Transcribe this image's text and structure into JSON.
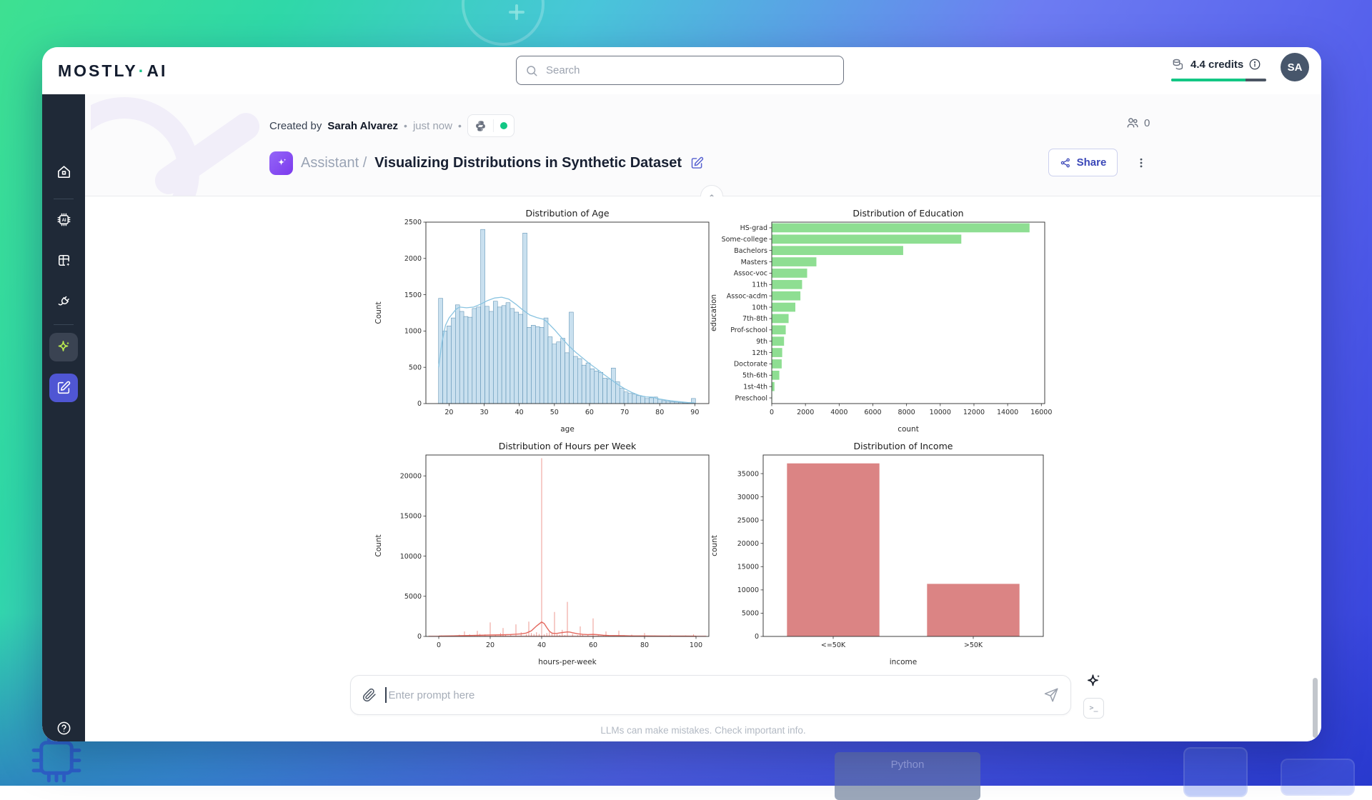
{
  "app": {
    "logo_left": "MOSTLY",
    "logo_dot": "·",
    "logo_right": "AI",
    "search_placeholder": "Search",
    "credits_label": "4.4 credits",
    "avatar_initials": "SA"
  },
  "sidebar": {
    "items": [
      "home-icon",
      "ai-chip-icon",
      "dataset-plus-icon",
      "connector-plug-icon",
      "assistant-sparkle-icon",
      "new-chat-compose-icon"
    ],
    "bottom": [
      "help-icon",
      "panel-toggle-icon"
    ]
  },
  "meta": {
    "created_by": "Created by",
    "author": "Sarah Alvarez",
    "dot": "•",
    "time": "just now"
  },
  "titlebar": {
    "breadcrumb": "Assistant",
    "separator": "/",
    "title": "Visualizing Distributions in Synthetic Dataset",
    "share_label": "Share",
    "collaborators_count": "0"
  },
  "prompt": {
    "placeholder": "Enter prompt here",
    "terminal_glyph": ">_"
  },
  "footer": {
    "disclaimer": "LLMs can make mistakes. Check important info."
  },
  "background": {
    "python_label": "Python"
  },
  "colors": {
    "accent_indigo": "#4f56d3",
    "brand_green": "#12c784",
    "sidebar_bg": "#1f2937",
    "lime_sparkle": "#b8e84e",
    "badge_purple": "#8b5cf6"
  },
  "icons": {
    "search-icon": "magnifier",
    "credits-coins-icon": "coin-stack",
    "info-icon": "circled-i",
    "users-icon": "two-people",
    "share-icon": "share-nodes",
    "kebab-icon": "vertical-dots",
    "python-icon": "python-logo",
    "chevron-up-icon": "^",
    "attachment-paperclip-icon": "paperclip",
    "send-icon": "paper-plane",
    "terminal-icon": ">_"
  },
  "chart_data": [
    {
      "id": "age",
      "type": "histogram",
      "title": "Distribution of Age",
      "xlabel": "age",
      "ylabel": "Count",
      "xlim": [
        13.4,
        94
      ],
      "ylim": [
        0,
        2500
      ],
      "xticks": [
        20,
        30,
        40,
        50,
        60,
        70,
        80,
        90
      ],
      "yticks": [
        0,
        500,
        1000,
        1500,
        2000,
        2500
      ],
      "bin_start": 17,
      "bin_width": 1.2,
      "values": [
        1450,
        1000,
        1070,
        1180,
        1360,
        1270,
        1200,
        1190,
        1310,
        1330,
        2400,
        1340,
        1270,
        1410,
        1330,
        1350,
        1390,
        1310,
        1260,
        1230,
        2350,
        1050,
        1080,
        1060,
        1050,
        1180,
        920,
        820,
        850,
        900,
        700,
        1260,
        650,
        620,
        530,
        560,
        480,
        450,
        430,
        350,
        340,
        490,
        300,
        210,
        160,
        140,
        130,
        110,
        100,
        70,
        80,
        90,
        60,
        40,
        30,
        25,
        20,
        15,
        10,
        8,
        70
      ],
      "kde": [
        [
          17,
          500
        ],
        [
          18,
          850
        ],
        [
          19,
          1080
        ],
        [
          20,
          1180
        ],
        [
          21,
          1240
        ],
        [
          22,
          1300
        ],
        [
          23,
          1330
        ],
        [
          25,
          1320
        ],
        [
          27,
          1330
        ],
        [
          29,
          1370
        ],
        [
          31,
          1420
        ],
        [
          33,
          1455
        ],
        [
          35,
          1465
        ],
        [
          37,
          1440
        ],
        [
          39,
          1370
        ],
        [
          41,
          1290
        ],
        [
          43,
          1220
        ],
        [
          45,
          1185
        ],
        [
          47,
          1160
        ],
        [
          48,
          1120
        ],
        [
          50,
          1020
        ],
        [
          52,
          910
        ],
        [
          54,
          800
        ],
        [
          56,
          710
        ],
        [
          58,
          630
        ],
        [
          60,
          550
        ],
        [
          62,
          480
        ],
        [
          64,
          405
        ],
        [
          66,
          335
        ],
        [
          68,
          265
        ],
        [
          70,
          205
        ],
        [
          72,
          155
        ],
        [
          74,
          115
        ],
        [
          76,
          92
        ],
        [
          78,
          88
        ],
        [
          80,
          62
        ],
        [
          82,
          46
        ],
        [
          84,
          34
        ],
        [
          86,
          24
        ],
        [
          88,
          14
        ],
        [
          90,
          8
        ]
      ],
      "bar_fill": "#c9e0ef",
      "bar_edge": "#4d86ab",
      "kde_color": "#8ac4e1"
    },
    {
      "id": "education",
      "type": "barh",
      "title": "Distribution of Education",
      "xlabel": "count",
      "ylabel": "education",
      "categories": [
        "HS-grad",
        "Some-college",
        "Bachelors",
        "Masters",
        "Assoc-voc",
        "11th",
        "Assoc-acdm",
        "10th",
        "7th-8th",
        "Prof-school",
        "9th",
        "12th",
        "Doctorate",
        "5th-6th",
        "1st-4th",
        "Preschool"
      ],
      "values": [
        15300,
        11250,
        7800,
        2650,
        2100,
        1800,
        1700,
        1400,
        1000,
        830,
        730,
        620,
        590,
        450,
        160,
        25
      ],
      "xlim": [
        0,
        16200
      ],
      "xticks": [
        0,
        2000,
        4000,
        6000,
        8000,
        10000,
        12000,
        14000,
        16000
      ],
      "bar_fill": "#8ede92"
    },
    {
      "id": "hours",
      "type": "spikes",
      "title": "Distribution of Hours per Week",
      "xlabel": "hours-per-week",
      "ylabel": "Count",
      "xlim": [
        -5,
        105
      ],
      "ylim": [
        0,
        22600
      ],
      "xticks": [
        0,
        20,
        40,
        60,
        80,
        100
      ],
      "yticks": [
        0,
        5000,
        10000,
        15000,
        20000
      ],
      "spikes": [
        [
          1,
          120
        ],
        [
          3,
          60
        ],
        [
          4,
          80
        ],
        [
          5,
          130
        ],
        [
          6,
          90
        ],
        [
          8,
          210
        ],
        [
          10,
          620
        ],
        [
          12,
          260
        ],
        [
          14,
          150
        ],
        [
          15,
          700
        ],
        [
          16,
          320
        ],
        [
          18,
          260
        ],
        [
          20,
          1750
        ],
        [
          22,
          200
        ],
        [
          24,
          420
        ],
        [
          25,
          1050
        ],
        [
          26,
          200
        ],
        [
          28,
          310
        ],
        [
          30,
          1500
        ],
        [
          32,
          520
        ],
        [
          34,
          260
        ],
        [
          35,
          1850
        ],
        [
          36,
          420
        ],
        [
          37,
          300
        ],
        [
          38,
          520
        ],
        [
          39,
          310
        ],
        [
          40,
          22200
        ],
        [
          41,
          260
        ],
        [
          42,
          430
        ],
        [
          43,
          520
        ],
        [
          44,
          420
        ],
        [
          45,
          3050
        ],
        [
          46,
          300
        ],
        [
          47,
          210
        ],
        [
          48,
          820
        ],
        [
          49,
          160
        ],
        [
          50,
          4300
        ],
        [
          52,
          310
        ],
        [
          54,
          160
        ],
        [
          55,
          1250
        ],
        [
          56,
          300
        ],
        [
          58,
          200
        ],
        [
          60,
          2250
        ],
        [
          62,
          160
        ],
        [
          64,
          120
        ],
        [
          65,
          620
        ],
        [
          66,
          150
        ],
        [
          68,
          110
        ],
        [
          70,
          720
        ],
        [
          72,
          160
        ],
        [
          75,
          220
        ],
        [
          78,
          100
        ],
        [
          80,
          420
        ],
        [
          84,
          110
        ],
        [
          86,
          80
        ],
        [
          90,
          160
        ],
        [
          94,
          90
        ],
        [
          96,
          110
        ],
        [
          98,
          80
        ],
        [
          99,
          260
        ]
      ],
      "kde": [
        [
          0,
          40
        ],
        [
          4,
          60
        ],
        [
          8,
          90
        ],
        [
          12,
          120
        ],
        [
          16,
          150
        ],
        [
          20,
          185
        ],
        [
          24,
          200
        ],
        [
          28,
          235
        ],
        [
          32,
          320
        ],
        [
          34,
          420
        ],
        [
          36,
          700
        ],
        [
          38,
          1300
        ],
        [
          40,
          1800
        ],
        [
          41,
          1600
        ],
        [
          42,
          1100
        ],
        [
          43,
          650
        ],
        [
          44,
          420
        ],
        [
          45,
          360
        ],
        [
          46,
          380
        ],
        [
          48,
          480
        ],
        [
          50,
          560
        ],
        [
          51,
          540
        ],
        [
          52,
          460
        ],
        [
          54,
          330
        ],
        [
          56,
          260
        ],
        [
          58,
          230
        ],
        [
          60,
          255
        ],
        [
          62,
          215
        ],
        [
          64,
          150
        ],
        [
          66,
          120
        ],
        [
          68,
          105
        ],
        [
          70,
          110
        ],
        [
          72,
          95
        ],
        [
          74,
          75
        ],
        [
          76,
          65
        ],
        [
          80,
          60
        ],
        [
          84,
          48
        ],
        [
          88,
          42
        ],
        [
          92,
          38
        ],
        [
          96,
          34
        ],
        [
          100,
          30
        ]
      ],
      "color": "#e4685e"
    },
    {
      "id": "income",
      "type": "bar",
      "title": "Distribution of Income",
      "xlabel": "income",
      "ylabel": "count",
      "categories": [
        "<=50K",
        ">50K"
      ],
      "values": [
        37200,
        11300
      ],
      "ylim": [
        0,
        39000
      ],
      "yticks": [
        0,
        5000,
        10000,
        15000,
        20000,
        25000,
        30000,
        35000
      ],
      "bar_fill": "#db8484",
      "bar_ratio": 0.66
    }
  ]
}
